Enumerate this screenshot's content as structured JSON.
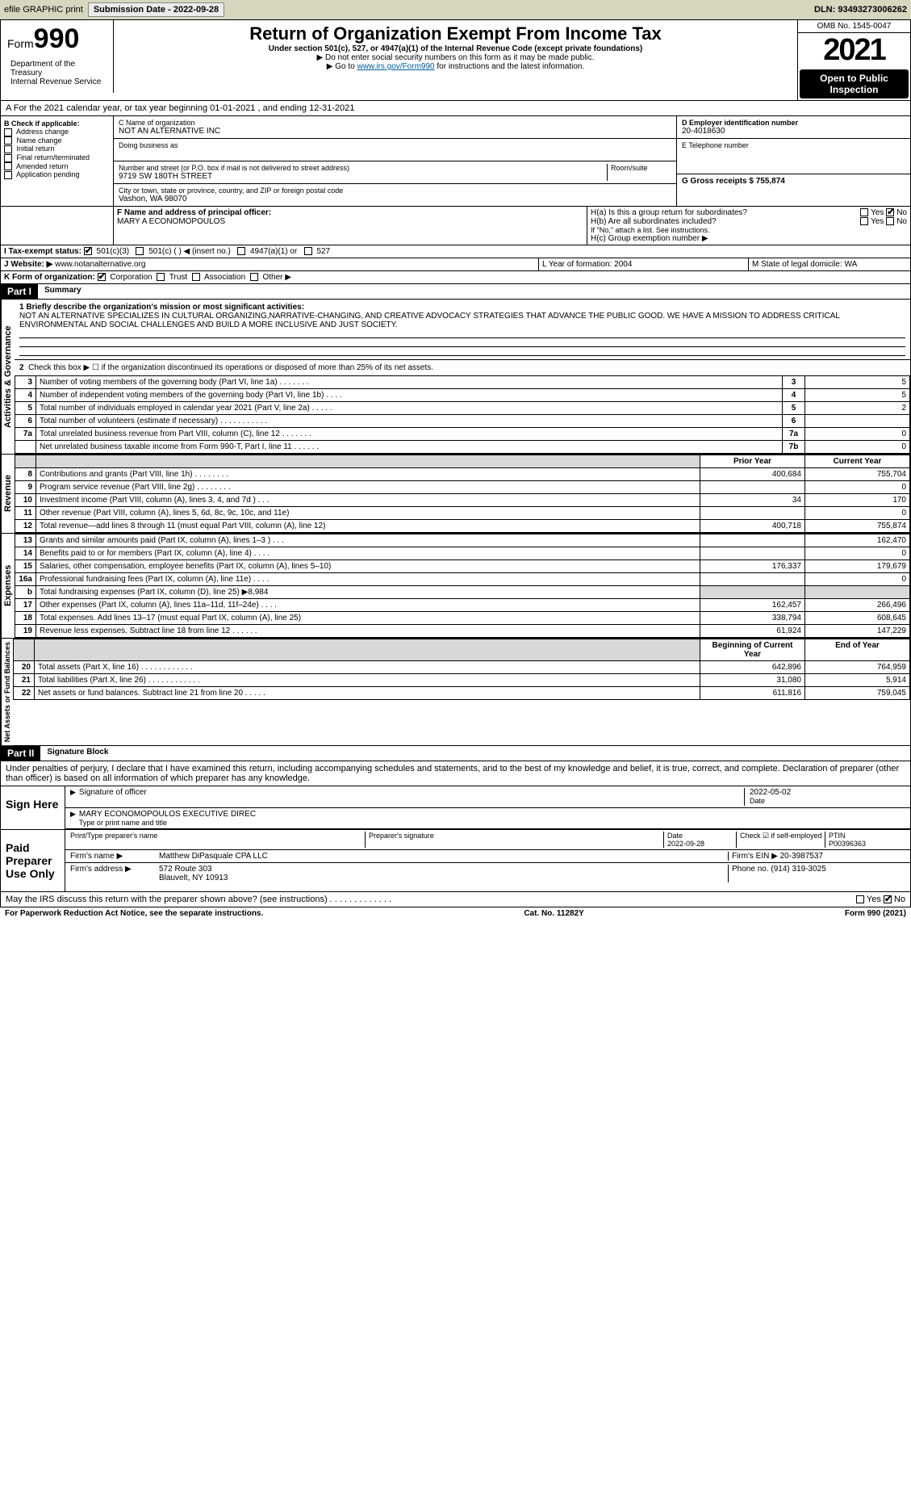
{
  "topbar": {
    "efile": "efile GRAPHIC print",
    "submission_label": "Submission Date - 2022-09-28",
    "dln_label": "DLN: 93493273006262"
  },
  "header": {
    "form_word": "Form",
    "form_no": "990",
    "dept": "Department of the Treasury\nInternal Revenue Service",
    "title": "Return of Organization Exempt From Income Tax",
    "subtitle": "Under section 501(c), 527, or 4947(a)(1) of the Internal Revenue Code (except private foundations)",
    "hint1": "▶ Do not enter social security numbers on this form as it may be made public.",
    "hint2_pre": "▶ Go to ",
    "hint2_link": "www.irs.gov/Form990",
    "hint2_post": " for instructions and the latest information.",
    "omb": "OMB No. 1545-0047",
    "year": "2021",
    "open": "Open to Public Inspection"
  },
  "section_a": "A For the 2021 calendar year, or tax year beginning 01-01-2021   , and ending 12-31-2021",
  "box_b": {
    "label": "B Check if applicable:",
    "opts": [
      "Address change",
      "Name change",
      "Initial return",
      "Final return/terminated",
      "Amended return",
      "Application pending"
    ],
    "c_label": "C Name of organization",
    "c_name": "NOT AN ALTERNATIVE INC",
    "dba_label": "Doing business as",
    "addr_label": "Number and street (or P.O. box if mail is not delivered to street address)",
    "room_label": "Room/suite",
    "addr": "9719 SW 180TH STREET",
    "city_label": "City or town, state or province, country, and ZIP or foreign postal code",
    "city": "Vashon, WA  98070",
    "d_label": "D Employer identification number",
    "d_val": "20-4018630",
    "e_label": "E Telephone number",
    "g_label": "G Gross receipts $ 755,874",
    "f_label": "F  Name and address of principal officer:",
    "f_val": "MARY A ECONOMOPOULOS",
    "h_a": "H(a)  Is this a group return for subordinates?",
    "h_b": "H(b)  Are all subordinates included?",
    "h_b_note": "If \"No,\" attach a list. See instructions.",
    "h_c": "H(c)  Group exemption number ▶",
    "yes": "Yes",
    "no": "No"
  },
  "status": {
    "i_label": "I   Tax-exempt status:",
    "opts": [
      "501(c)(3)",
      "501(c) (  ) ◀ (insert no.)",
      "4947(a)(1) or",
      "527"
    ],
    "j_label": "J   Website: ▶",
    "j_val": "www.notanalternative.org",
    "k_label": "K Form of organization:",
    "k_opts": [
      "Corporation",
      "Trust",
      "Association",
      "Other ▶"
    ],
    "l_label": "L Year of formation: 2004",
    "m_label": "M State of legal domicile: WA"
  },
  "part1": {
    "hdr": "Part I",
    "title": "Summary",
    "line1_label": "1  Briefly describe the organization's mission or most significant activities:",
    "line1_text": "NOT AN ALTERNATIVE SPECIALIZES IN CULTURAL ORGANIZING,NARRATIVE-CHANGING, AND CREATIVE ADVOCACY STRATEGIES THAT ADVANCE THE PUBLIC GOOD. WE HAVE A MISSION TO ADDRESS CRITICAL ENVIRONMENTAL AND SOCIAL CHALLENGES AND BUILD A MORE INCLUSIVE AND JUST SOCIETY.",
    "line2": "Check this box ▶ ☐  if the organization discontinued its operations or disposed of more than 25% of its net assets.",
    "side_ag": "Activities & Governance",
    "side_rev": "Revenue",
    "side_exp": "Expenses",
    "side_net": "Net Assets or Fund Balances",
    "rows_ag": [
      {
        "n": "3",
        "t": "Number of voting members of the governing body (Part VI, line 1a)   .    .    .    .    .    .    .",
        "box": "3",
        "v": "5"
      },
      {
        "n": "4",
        "t": "Number of independent voting members of the governing body (Part VI, line 1b)   .    .    .    .",
        "box": "4",
        "v": "5"
      },
      {
        "n": "5",
        "t": "Total number of individuals employed in calendar year 2021 (Part V, line 2a)   .    .    .    .    .",
        "box": "5",
        "v": "2"
      },
      {
        "n": "6",
        "t": "Total number of volunteers (estimate if necessary)    .    .    .    .    .    .    .    .    .    .    .",
        "box": "6",
        "v": ""
      },
      {
        "n": "7a",
        "t": "Total unrelated business revenue from Part VIII, column (C), line 12   .    .    .    .    .    .    .",
        "box": "7a",
        "v": "0"
      },
      {
        "n": "",
        "t": "Net unrelated business taxable income from Form 990-T, Part I, line 11   .    .    .    .    .    .",
        "box": "7b",
        "v": "0"
      }
    ],
    "hdr_prior": "Prior Year",
    "hdr_current": "Current Year",
    "rows_rev": [
      {
        "n": "8",
        "t": "Contributions and grants (Part VIII, line 1h)   .    .    .    .    .    .    .    .",
        "p": "400,684",
        "c": "755,704"
      },
      {
        "n": "9",
        "t": "Program service revenue (Part VIII, line 2g)   .    .    .    .    .    .    .    .",
        "p": "",
        "c": "0"
      },
      {
        "n": "10",
        "t": "Investment income (Part VIII, column (A), lines 3, 4, and 7d )   .    .    .",
        "p": "34",
        "c": "170"
      },
      {
        "n": "11",
        "t": "Other revenue (Part VIII, column (A), lines 5, 6d, 8c, 9c, 10c, and 11e)",
        "p": "",
        "c": "0"
      },
      {
        "n": "12",
        "t": "Total revenue—add lines 8 through 11 (must equal Part VIII, column (A), line 12)",
        "p": "400,718",
        "c": "755,874"
      }
    ],
    "rows_exp": [
      {
        "n": "13",
        "t": "Grants and similar amounts paid (Part IX, column (A), lines 1–3 )   .    .    .",
        "p": "",
        "c": "162,470"
      },
      {
        "n": "14",
        "t": "Benefits paid to or for members (Part IX, column (A), line 4)   .    .    .    .",
        "p": "",
        "c": "0"
      },
      {
        "n": "15",
        "t": "Salaries, other compensation, employee benefits (Part IX, column (A), lines 5–10)",
        "p": "176,337",
        "c": "179,679"
      },
      {
        "n": "16a",
        "t": "Professional fundraising fees (Part IX, column (A), line 11e)   .    .    .    .",
        "p": "",
        "c": "0"
      },
      {
        "n": "b",
        "t": "Total fundraising expenses (Part IX, column (D), line 25) ▶8,984",
        "p": "shade",
        "c": "shade"
      },
      {
        "n": "17",
        "t": "Other expenses (Part IX, column (A), lines 11a–11d, 11f–24e)   .    .    .    .",
        "p": "162,457",
        "c": "266,496"
      },
      {
        "n": "18",
        "t": "Total expenses. Add lines 13–17 (must equal Part IX, column (A), line 25)",
        "p": "338,794",
        "c": "608,645"
      },
      {
        "n": "19",
        "t": "Revenue less expenses. Subtract line 18 from line 12   .    .    .    .    .    .",
        "p": "61,924",
        "c": "147,229"
      }
    ],
    "hdr_begin": "Beginning of Current Year",
    "hdr_end": "End of Year",
    "rows_net": [
      {
        "n": "20",
        "t": "Total assets (Part X, line 16)   .    .    .    .    .    .    .    .    .    .    .    .",
        "p": "642,896",
        "c": "764,959"
      },
      {
        "n": "21",
        "t": "Total liabilities (Part X, line 26)   .    .    .    .    .    .    .    .    .    .    .    .",
        "p": "31,080",
        "c": "5,914"
      },
      {
        "n": "22",
        "t": "Net assets or fund balances. Subtract line 21 from line 20   .    .    .    .    .",
        "p": "611,816",
        "c": "759,045"
      }
    ]
  },
  "part2": {
    "hdr": "Part II",
    "title": "Signature Block",
    "decl": "Under penalties of perjury, I declare that I have examined this return, including accompanying schedules and statements, and to the best of my knowledge and belief, it is true, correct, and complete. Declaration of preparer (other than officer) is based on all information of which preparer has any knowledge.",
    "sign_here": "Sign Here",
    "sig_officer": "Signature of officer",
    "sig_date_val": "2022-05-02",
    "sig_date": "Date",
    "sig_name": "MARY ECONOMOPOULOS  EXECUTIVE DIREC",
    "sig_name_label": "Type or print name and title",
    "paid": "Paid Preparer Use Only",
    "pp_name_label": "Print/Type preparer's name",
    "pp_sig_label": "Preparer's signature",
    "pp_date_label": "Date",
    "pp_date": "2022-09-28",
    "pp_check": "Check ☑ if self-employed",
    "pp_ptin_label": "PTIN",
    "pp_ptin": "P00396363",
    "firm_name_label": "Firm's name    ▶",
    "firm_name": "Matthew DiPasquale CPA LLC",
    "firm_ein_label": "Firm's EIN ▶",
    "firm_ein": "20-3987537",
    "firm_addr_label": "Firm's address ▶",
    "firm_addr1": "572 Route 303",
    "firm_addr2": "Blauvelt, NY  10913",
    "firm_phone_label": "Phone no.",
    "firm_phone": "(914) 319-3025",
    "may_irs": "May the IRS discuss this return with the preparer shown above? (see instructions)   .    .    .    .    .    .    .    .    .    .    .    .    ."
  },
  "footer": {
    "left": "For Paperwork Reduction Act Notice, see the separate instructions.",
    "mid": "Cat. No. 11282Y",
    "right": "Form 990 (2021)"
  }
}
